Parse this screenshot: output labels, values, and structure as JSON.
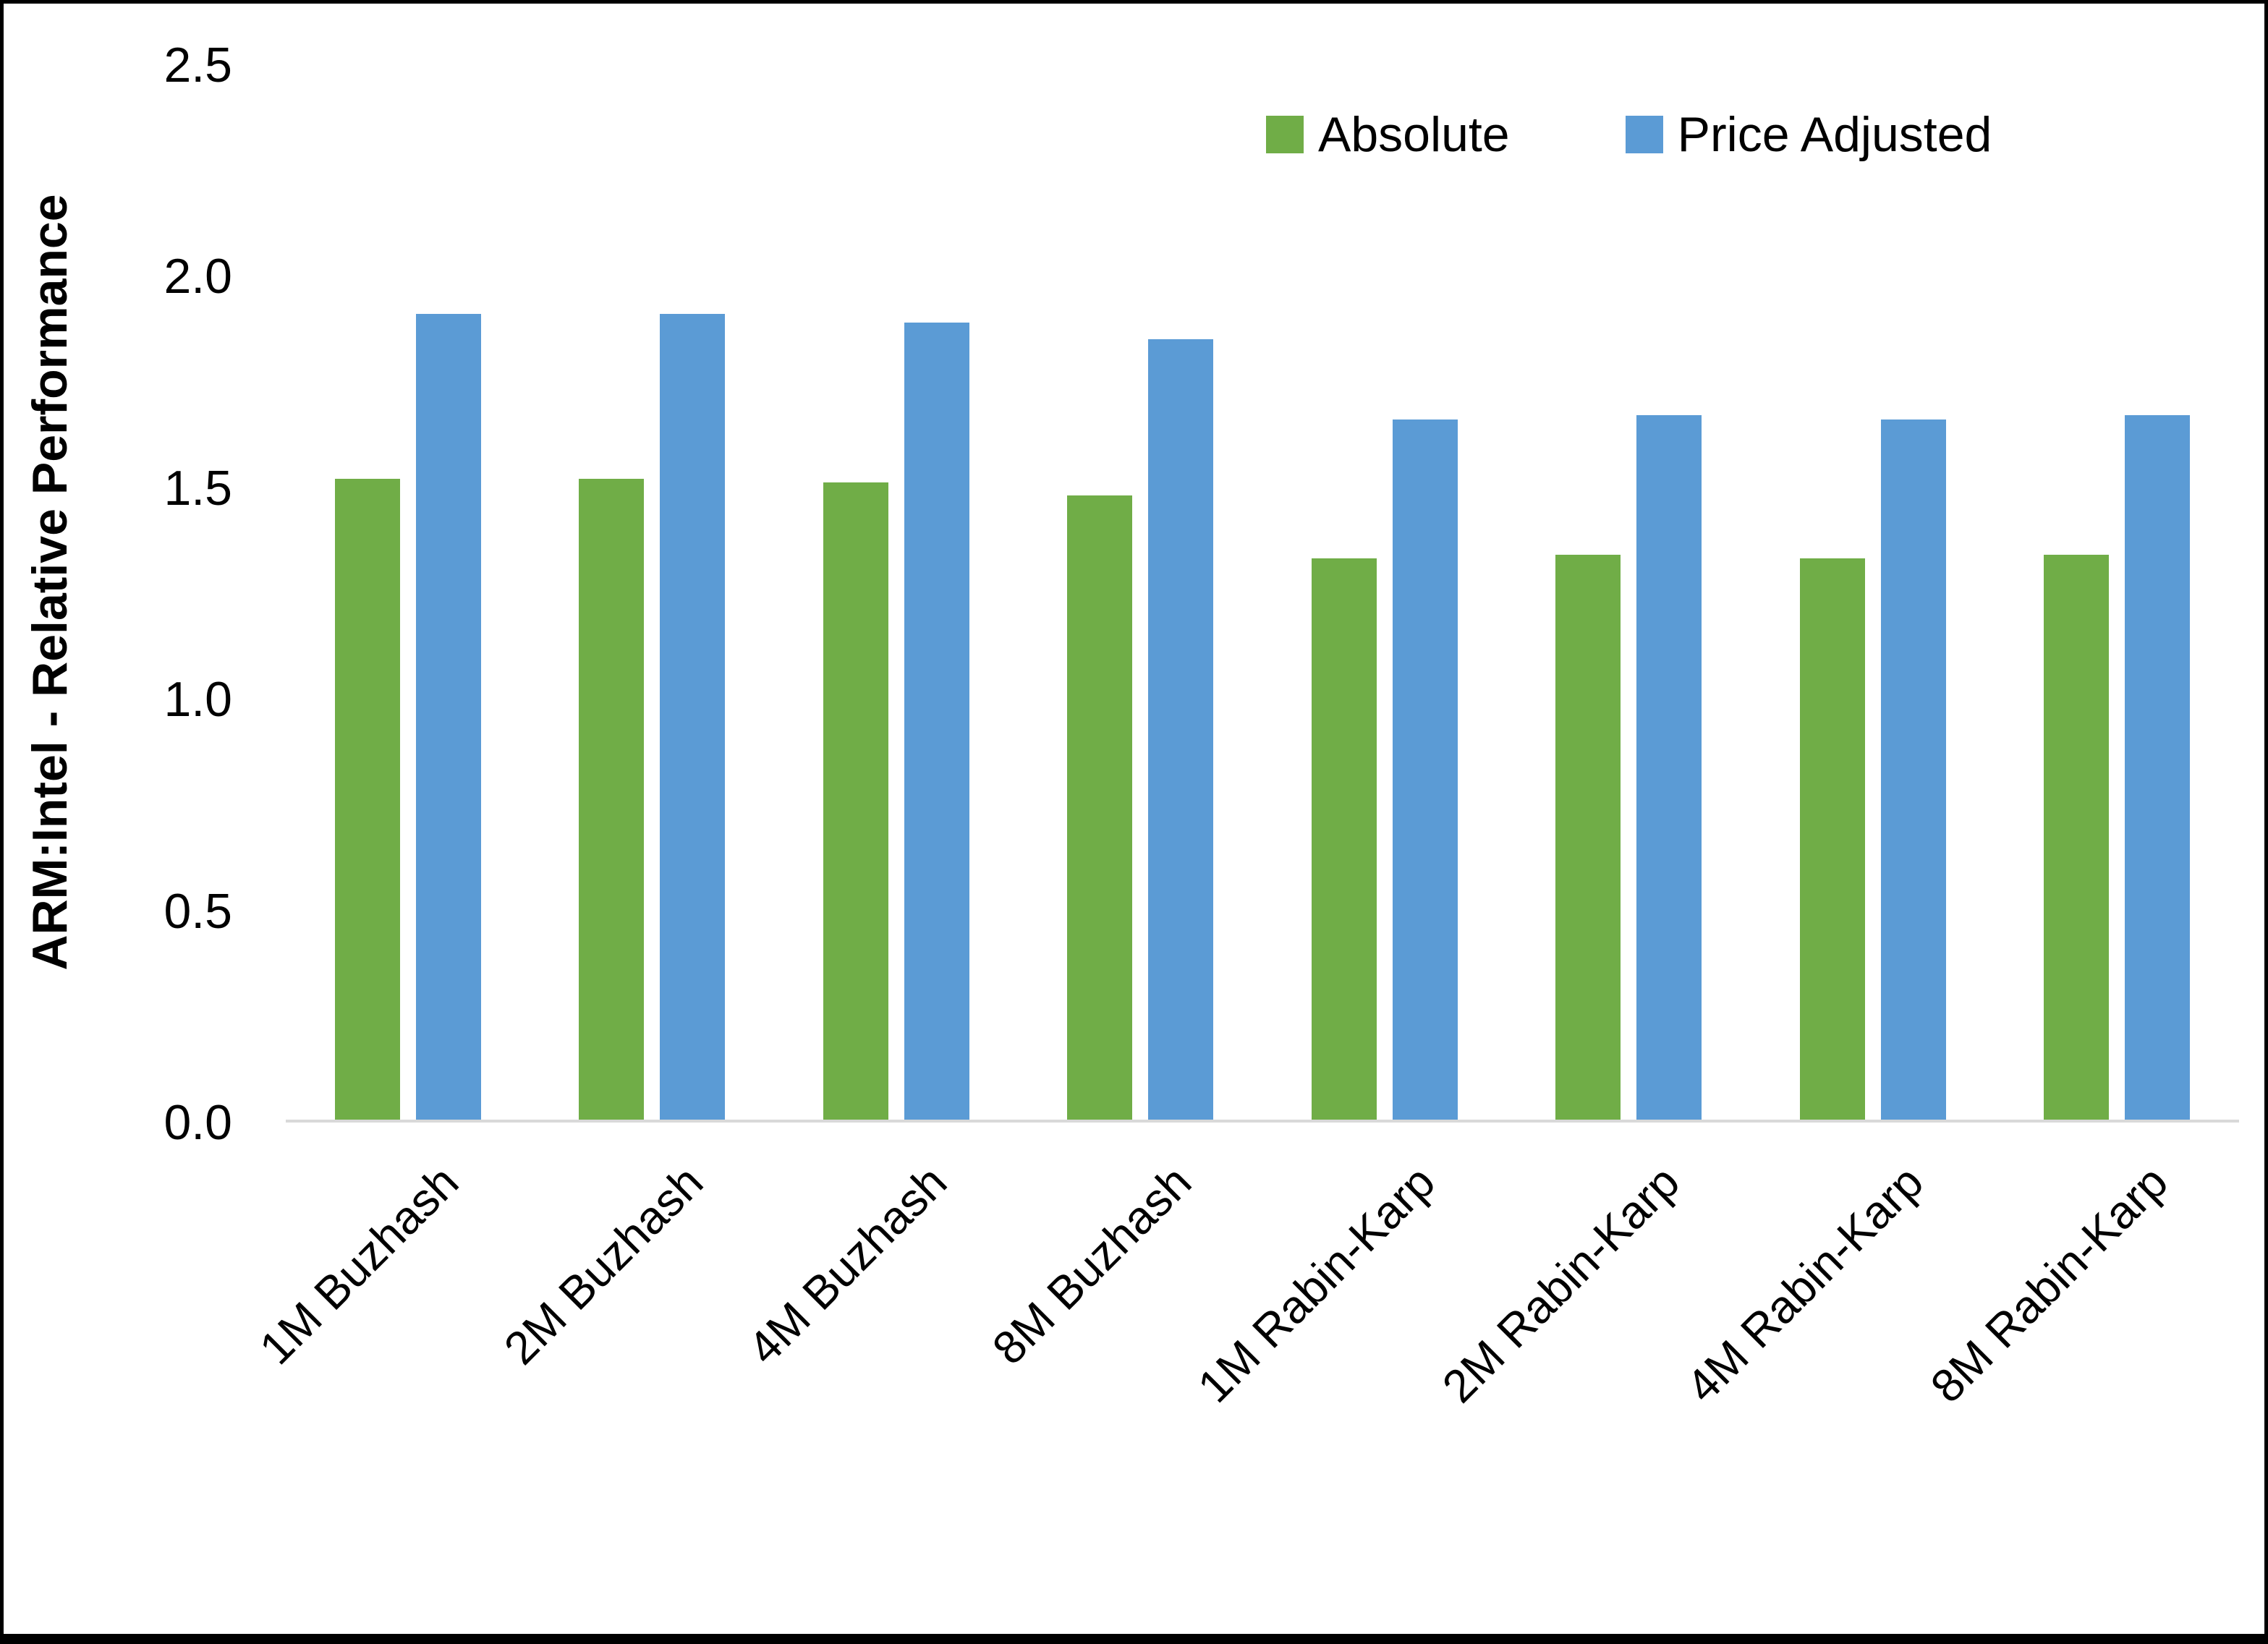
{
  "chart_data": {
    "type": "bar",
    "categories": [
      "1M Buzhash",
      "2M Buzhash",
      "4M Buzhash",
      "8M Buzhash",
      "1M Rabin-Karp",
      "2M Rabin-Karp",
      "4M Rabin-Karp",
      "8M Rabin-Karp"
    ],
    "series": [
      {
        "name": "Absolute",
        "color": "#70AD47",
        "values": [
          1.52,
          1.52,
          1.51,
          1.48,
          1.33,
          1.34,
          1.33,
          1.34
        ]
      },
      {
        "name": "Price Adjusted",
        "color": "#5B9BD5",
        "values": [
          1.91,
          1.91,
          1.89,
          1.85,
          1.66,
          1.67,
          1.66,
          1.67
        ]
      }
    ],
    "ylabel": "ARM:Intel - Relative Performance",
    "ylim": [
      0,
      2.5
    ],
    "yticks": [
      0.0,
      0.5,
      1.0,
      1.5,
      2.0,
      2.5
    ],
    "ytick_labels": [
      "0.0",
      "0.5",
      "1.0",
      "1.5",
      "2.0",
      "2.5"
    ],
    "legend_position": "top-right",
    "grid": false,
    "axis_line_color": "#D9D9D9",
    "background_color": "#FFFFFF"
  }
}
